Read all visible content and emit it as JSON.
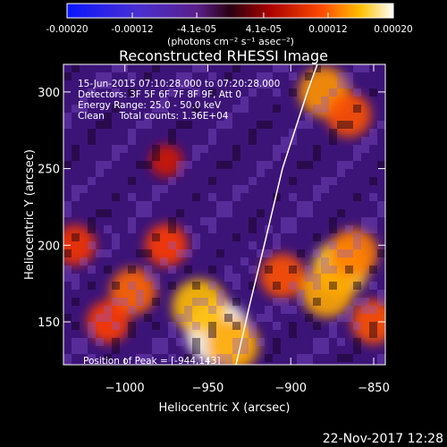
{
  "colorbar": {
    "tick_labels": [
      "-0.00020",
      "-0.00012",
      "-4.1e-05",
      "4.1e-05",
      "0.00012",
      "0.00020"
    ],
    "tick_values": [
      -0.0002,
      -0.00012,
      -4.1e-05,
      4.1e-05,
      0.00012,
      0.0002
    ],
    "range": [
      -0.0002,
      0.0002
    ],
    "units_label": "(photons cm⁻² s⁻¹ asec⁻²)"
  },
  "chart_data": {
    "type": "heatmap",
    "title": "Reconstructed RHESSI Image",
    "xlabel": "Heliocentric X (arcsec)",
    "ylabel": "Heliocentric Y (arcsec)",
    "xlim": [
      -1037,
      -843
    ],
    "ylim": [
      122,
      318
    ],
    "x_ticks": [
      -1000,
      -950,
      -900,
      -850
    ],
    "x_tick_labels": [
      "−1000",
      "−950",
      "−900",
      "−850"
    ],
    "y_ticks": [
      150,
      200,
      250,
      300
    ],
    "y_tick_labels": [
      "150",
      "200",
      "250",
      "300"
    ],
    "annotations": [
      "15-Jun-2015 07:10:28.000 to 07:20:28.000",
      "Detectors: 3F 5F 6F 7F 8F 9F, Att 0",
      "Energy Range: 25.0 - 50.0 keV",
      "Clean     Total counts: 1.36E+04"
    ],
    "peak_label": "Position of Peak = [-944,143]",
    "peak": {
      "x": -944,
      "y": 143
    },
    "limb_curve": [
      [
        -933,
        122
      ],
      [
        -925,
        160
      ],
      [
        -916,
        200
      ],
      [
        -905,
        250
      ],
      [
        -890,
        300
      ],
      [
        -884,
        318
      ]
    ],
    "intensity_blobs": [
      {
        "x": -944,
        "y": 143,
        "value": 0.0002
      },
      {
        "x": -955,
        "y": 160,
        "value": 0.00015
      },
      {
        "x": -935,
        "y": 135,
        "value": 0.00014
      },
      {
        "x": -870,
        "y": 185,
        "value": 0.00016
      },
      {
        "x": -878,
        "y": 170,
        "value": 0.00014
      },
      {
        "x": -862,
        "y": 195,
        "value": 0.00012
      },
      {
        "x": -905,
        "y": 180,
        "value": 0.0001
      },
      {
        "x": -995,
        "y": 170,
        "value": 0.00011
      },
      {
        "x": -1010,
        "y": 150,
        "value": 9e-05
      },
      {
        "x": -975,
        "y": 200,
        "value": 9e-05
      },
      {
        "x": -880,
        "y": 300,
        "value": 0.00013
      },
      {
        "x": -865,
        "y": 285,
        "value": 0.0001
      },
      {
        "x": -1030,
        "y": 200,
        "value": 8e-05
      },
      {
        "x": -850,
        "y": 150,
        "value": 0.0001
      },
      {
        "x": -975,
        "y": 255,
        "value": 4e-05
      }
    ]
  },
  "footer": {
    "timestamp": "22-Nov-2017 12:28"
  }
}
